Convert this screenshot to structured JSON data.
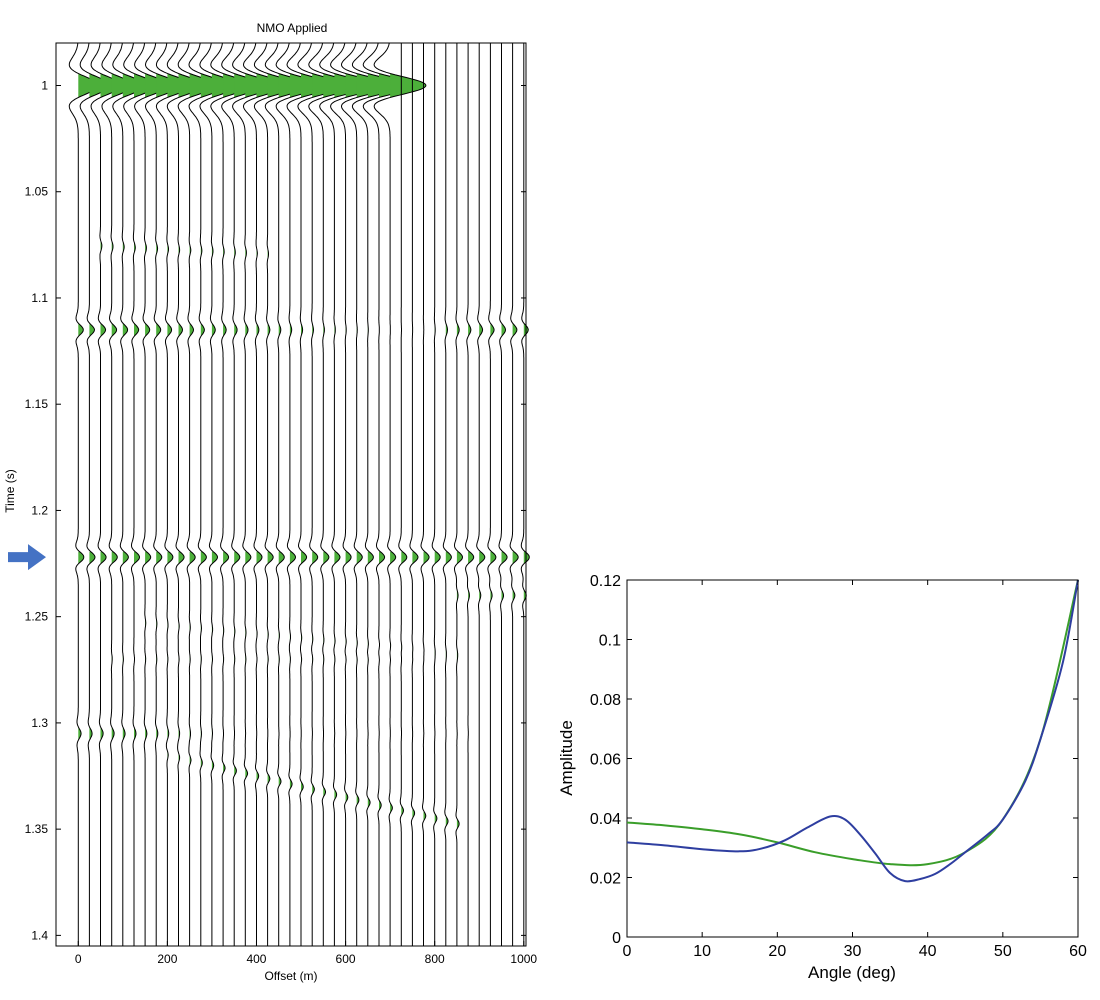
{
  "chart_data": [
    {
      "type": "seismic-wiggle",
      "title": "NMO Applied",
      "xlabel": "Offset (m)",
      "ylabel": "Time (s)",
      "xlim": [
        -50,
        1005
      ],
      "ylim": [
        0.98,
        1.405
      ],
      "x_ticks": [
        0,
        200,
        400,
        600,
        800,
        1000
      ],
      "y_ticks": [
        1,
        1.05,
        1.1,
        1.15,
        1.2,
        1.25,
        1.3,
        1.35,
        1.4
      ],
      "trace_offsets_m": [
        0,
        25,
        50,
        75,
        100,
        125,
        150,
        175,
        200,
        225,
        250,
        275,
        300,
        325,
        350,
        375,
        400,
        425,
        450,
        475,
        500,
        525,
        550,
        575,
        600,
        625,
        650,
        675,
        700,
        725,
        750,
        775,
        800,
        825,
        850,
        875,
        900,
        925,
        950,
        975,
        1000
      ],
      "fill_positive": "#4caf3a",
      "marker_arrow_time": 1.222,
      "marker_arrow_color": "#4472c4",
      "events": [
        {
          "t0": 1.0,
          "amps": [
            1.8,
            1.85,
            1.9,
            1.95,
            2.0,
            2.05,
            2.1,
            2.15,
            2.2,
            2.25,
            2.3,
            2.35,
            2.4,
            2.45,
            2.5,
            2.55,
            2.6,
            2.65,
            2.7,
            2.75,
            2.8,
            2.85,
            2.9,
            2.95,
            3.0,
            3.05,
            3.1,
            3.15,
            3.2,
            3.25,
            3.3,
            3.35,
            3.4,
            3.45,
            3.5,
            3.55,
            3.6,
            3.65,
            3.7,
            3.75,
            3.8
          ],
          "width": 0.008,
          "end_offset": 700
        },
        {
          "t0": 1.115,
          "amps": [
            0.45,
            0.45,
            0.45,
            0.44,
            0.43,
            0.42,
            0.41,
            0.4,
            0.38,
            0.36,
            0.34,
            0.32,
            0.3,
            0.28,
            0.26,
            0.24,
            0.22,
            0.2,
            0.18,
            0.16,
            0.14,
            0.12,
            0.1,
            0.08,
            0.06,
            0.05,
            0.04,
            0.03,
            0.02,
            0.02,
            0.02,
            0.02,
            0.05,
            0.15,
            0.2,
            0.25,
            0.3,
            0.33,
            0.36,
            0.38,
            0.4
          ],
          "width": 0.0045
        },
        {
          "t0": 1.222,
          "amps": [
            0.5,
            0.5,
            0.5,
            0.5,
            0.5,
            0.5,
            0.5,
            0.5,
            0.5,
            0.5,
            0.5,
            0.5,
            0.5,
            0.5,
            0.5,
            0.5,
            0.5,
            0.5,
            0.5,
            0.5,
            0.5,
            0.5,
            0.5,
            0.5,
            0.5,
            0.5,
            0.5,
            0.5,
            0.5,
            0.5,
            0.5,
            0.5,
            0.5,
            0.5,
            0.5,
            0.5,
            0.5,
            0.5,
            0.5,
            0.5,
            0.5
          ],
          "width": 0.0045
        },
        {
          "t0": 1.305,
          "amps": [
            0.25,
            0.24,
            0.23,
            0.22,
            0.2,
            0.18,
            0.16,
            0.14,
            0.12,
            0.1,
            0.08,
            0.06,
            0.05,
            0.04,
            0.03,
            0.02,
            0.02,
            0.02,
            0.02,
            0.02,
            0.02,
            0.02,
            0.02,
            0.02,
            0.02,
            0.02,
            0.02,
            0.02,
            0.02,
            0.02,
            0.02,
            0.02,
            0.02,
            0.02,
            0.02,
            0.02,
            0.0,
            0.0,
            0.0,
            0.0,
            0.0
          ],
          "width": 0.0045
        },
        {
          "t0": 1.305,
          "amps": [
            0,
            0,
            0,
            0,
            0,
            0,
            0,
            0,
            0.08,
            0.1,
            0.12,
            0.14,
            0.16,
            0.18,
            0.2,
            0.2,
            0.2,
            0.2,
            0.2,
            0.2,
            0.2,
            0.2,
            0.2,
            0.2,
            0.2,
            0.2,
            0.2,
            0.2,
            0.2,
            0.2,
            0.2,
            0.2,
            0.2,
            0.2,
            0.2,
            0.0,
            0.0,
            0.0,
            0.0,
            0.0,
            0.0
          ],
          "width": 0.0035,
          "moveout": 5e-05
        },
        {
          "t0": 1.075,
          "amps": [
            0,
            0,
            0.12,
            0.12,
            0.12,
            0.12,
            0.12,
            0.12,
            0.1,
            0.1,
            0.1,
            0.1,
            0.1,
            0.1,
            0.1,
            0.1,
            0.08,
            0.08,
            0,
            0,
            0,
            0,
            0,
            0,
            0,
            0,
            0,
            0,
            0,
            0,
            0,
            0,
            0,
            0,
            0,
            0,
            0,
            0,
            0,
            0,
            0
          ],
          "width": 0.004,
          "moveout": 1e-05
        },
        {
          "t0": 1.24,
          "amps": [
            0,
            0,
            0,
            0,
            0,
            0,
            0,
            0,
            0,
            0,
            0,
            0,
            0,
            0,
            0,
            0,
            0,
            0,
            0,
            0,
            0,
            0,
            0,
            0,
            0,
            0,
            0,
            0,
            0,
            0,
            0,
            0,
            0,
            0,
            0.1,
            0.12,
            0.14,
            0.16,
            0.18,
            0.2,
            0.22
          ],
          "width": 0.004
        },
        {
          "t0": 1.25,
          "amps": [
            0,
            0,
            0,
            0,
            0,
            0,
            0.06,
            0.06,
            0.06,
            0.06,
            0.06,
            0.06,
            0.06,
            0.06,
            0.06,
            0.06,
            0.06,
            0.06,
            0.06,
            0.06,
            0.06,
            0.06,
            0.06,
            0.06,
            0.06,
            0.06,
            0.06,
            0.06,
            0.06,
            0.06,
            0.06,
            0.06,
            0.06,
            0.06,
            0.06,
            0,
            0,
            0,
            0,
            0,
            0
          ],
          "width": 0.004,
          "moveout": 2e-05
        },
        {
          "t0": 1.27,
          "amps": [
            0,
            0,
            0,
            0.05,
            0.05,
            0.05,
            0.05,
            0.05,
            0.05,
            0.05,
            0.05,
            0.05,
            0.05,
            0.05,
            0.05,
            0.05,
            0.05,
            0.05,
            0.05,
            0.05,
            0.05,
            0.05,
            0.05,
            0.05,
            0.05,
            0.05,
            0.05,
            0.05,
            0.05,
            0.05,
            0.05,
            0.05,
            0.05,
            0.05,
            0.05,
            0,
            0,
            0,
            0,
            0,
            0
          ],
          "width": 0.004
        }
      ]
    },
    {
      "type": "line",
      "title": "",
      "xlabel": "Angle (deg)",
      "ylabel": "Amplitude",
      "xlim": [
        0,
        60
      ],
      "ylim": [
        0,
        0.12
      ],
      "x_ticks": [
        0,
        10,
        20,
        30,
        40,
        50,
        60
      ],
      "y_ticks": [
        0,
        0.02,
        0.04,
        0.06,
        0.08,
        0.1,
        0.12
      ],
      "series": [
        {
          "color": "#3a9e2a",
          "x": [
            0,
            5,
            10,
            15,
            20,
            25,
            30,
            35,
            40,
            45,
            50,
            55,
            60
          ],
          "y": [
            0.0385,
            0.0375,
            0.0362,
            0.0345,
            0.0318,
            0.0285,
            0.0262,
            0.0245,
            0.0245,
            0.0285,
            0.0395,
            0.0665,
            0.12
          ]
        },
        {
          "color": "#2e3ea0",
          "x": [
            0,
            5,
            10,
            15,
            18,
            21,
            24,
            27,
            29,
            31,
            33,
            35,
            37,
            39,
            41,
            43,
            45,
            48,
            50,
            53,
            55,
            58,
            60
          ],
          "y": [
            0.0318,
            0.0308,
            0.0295,
            0.0288,
            0.0298,
            0.0325,
            0.0368,
            0.0405,
            0.0395,
            0.0345,
            0.0282,
            0.0215,
            0.0188,
            0.0195,
            0.0212,
            0.0245,
            0.0285,
            0.0345,
            0.0395,
            0.0525,
            0.0665,
            0.0925,
            0.12
          ]
        }
      ]
    }
  ]
}
